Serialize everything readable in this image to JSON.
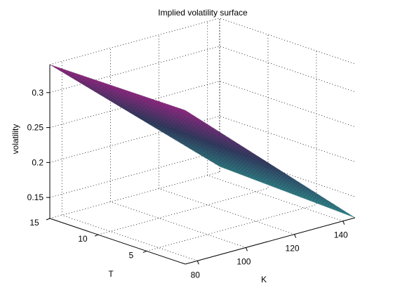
{
  "chart_data": {
    "type": "surface",
    "title": "Implied volatility surface",
    "xlabel": "K",
    "ylabel": "T",
    "zlabel": "volatility",
    "x_ticks": [
      80,
      100,
      120,
      140
    ],
    "y_ticks": [
      5,
      10,
      15
    ],
    "z_ticks": [
      0.15,
      0.2,
      0.25,
      0.3
    ],
    "x_ticklabels": [
      "80",
      "100",
      "120",
      "140"
    ],
    "y_ticklabels": [
      "5",
      "10",
      "15"
    ],
    "z_ticklabels": [
      "0.15",
      "0.2",
      "0.25",
      "0.3"
    ],
    "xlim": [
      75,
      145
    ],
    "ylim": [
      1,
      15
    ],
    "zlim": [
      0.12,
      0.34
    ],
    "grid": true,
    "colormap": "cool-to-magenta",
    "surface": {
      "K": [
        75,
        145
      ],
      "T": [
        1,
        15
      ],
      "volatility": [
        [
          0.34,
          0.12
        ],
        [
          0.34,
          0.128
        ]
      ]
    }
  }
}
